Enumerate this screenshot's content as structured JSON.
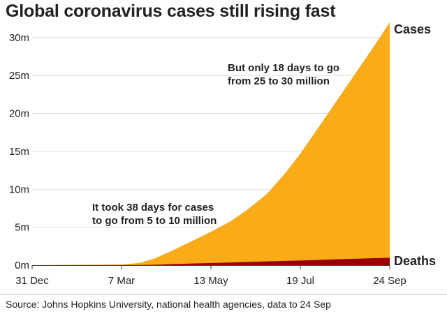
{
  "chart_data": {
    "type": "area",
    "title": "Global coronavirus cases still rising fast",
    "xlabel": "",
    "ylabel": "",
    "x_ticks": [
      "31 Dec",
      "7 Mar",
      "13 May",
      "19 Jul",
      "24 Sep"
    ],
    "xlim": [
      "2019-12-31",
      "2020-09-24"
    ],
    "y_ticks": [
      "0m",
      "5m",
      "10m",
      "15m",
      "20m",
      "25m",
      "30m"
    ],
    "ylim": [
      0,
      32
    ],
    "y_unit": "million",
    "grid": true,
    "series": [
      {
        "name": "Cases",
        "color": "#faab18",
        "x": [
          "2019-12-31",
          "2020-02-15",
          "2020-03-07",
          "2020-03-20",
          "2020-04-01",
          "2020-04-15",
          "2020-04-29",
          "2020-05-13",
          "2020-05-27",
          "2020-06-10",
          "2020-06-24",
          "2020-07-08",
          "2020-07-19",
          "2020-08-01",
          "2020-08-15",
          "2020-08-29",
          "2020-09-12",
          "2020-09-24"
        ],
        "values": [
          0,
          0.07,
          0.1,
          0.27,
          0.9,
          2.0,
          3.2,
          4.4,
          5.7,
          7.4,
          9.4,
          12.2,
          14.7,
          18.0,
          21.6,
          25.2,
          28.8,
          32.0
        ]
      },
      {
        "name": "Deaths",
        "color": "#990000",
        "x": [
          "2019-12-31",
          "2020-03-07",
          "2020-04-01",
          "2020-04-29",
          "2020-05-27",
          "2020-06-24",
          "2020-07-19",
          "2020-08-15",
          "2020-09-24"
        ],
        "values": [
          0,
          0,
          0.05,
          0.22,
          0.35,
          0.49,
          0.61,
          0.77,
          0.98
        ]
      }
    ],
    "annotations": [
      {
        "lines": [
          "It took 38 days for cases",
          "to go from 5 to 10 million"
        ]
      },
      {
        "lines": [
          "But only 18 days to go",
          "from 25 to 30 million"
        ]
      }
    ]
  },
  "footer": {
    "source": "Source: Johns Hopkins University, national health agencies, data to 24 Sep"
  }
}
